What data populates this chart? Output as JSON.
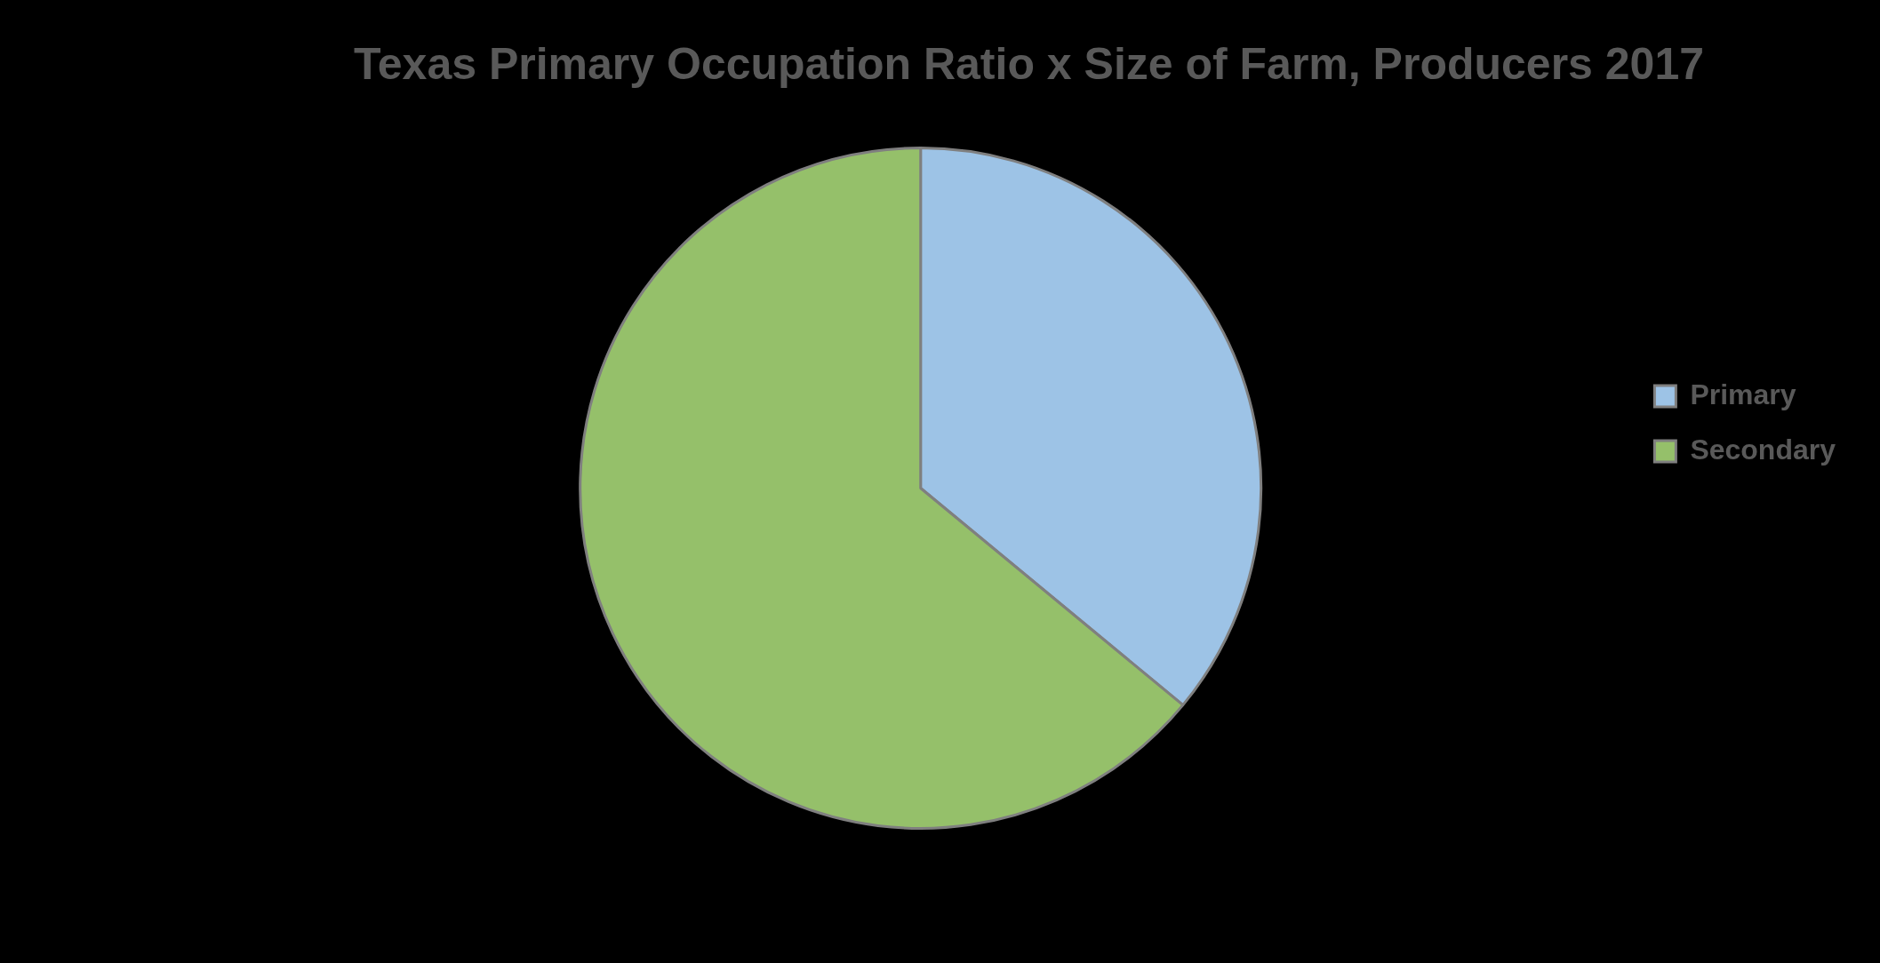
{
  "chart_data": {
    "type": "pie",
    "title": "Texas Primary Occupation Ratio x Size of Farm, Producers 2017",
    "categories": [
      "Primary",
      "Secondary"
    ],
    "values": [
      36,
      64
    ],
    "colors": [
      "#9dc3e6",
      "#95c06a"
    ],
    "legend": "right"
  }
}
